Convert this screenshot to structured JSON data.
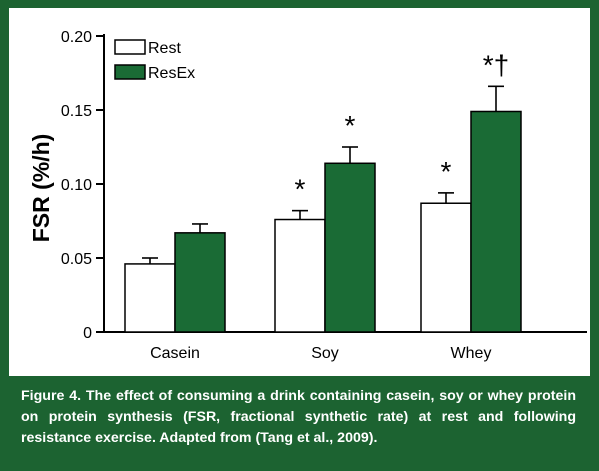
{
  "colors": {
    "frame": "#1c6331",
    "rest": "#ffffff",
    "resex": "#1a6b35",
    "axis": "#000000",
    "caption_text": "#ffffff"
  },
  "chart_data": {
    "type": "bar",
    "title": "",
    "xlabel": "",
    "ylabel": "FSR (%/h)",
    "ylim": [
      0,
      0.2
    ],
    "yticks": [
      0,
      0.05,
      0.1,
      0.15,
      0.2
    ],
    "ytick_labels": [
      "0",
      "0.05",
      "0.10",
      "0.15",
      "0.20"
    ],
    "grid": false,
    "legend_position": "top-left",
    "categories": [
      "Casein",
      "Soy",
      "Whey"
    ],
    "series": [
      {
        "name": "Rest",
        "values": [
          0.046,
          0.076,
          0.087
        ],
        "errors": [
          0.004,
          0.006,
          0.007
        ],
        "markers": [
          "",
          "*",
          "*"
        ]
      },
      {
        "name": "ResEx",
        "values": [
          0.067,
          0.114,
          0.149
        ],
        "errors": [
          0.006,
          0.011,
          0.017
        ],
        "markers": [
          "",
          "*",
          "*†"
        ]
      }
    ]
  },
  "caption": "Figure 4. The effect of consuming a drink containing casein, soy or whey protein on protein synthesis (FSR, fractional synthetic rate) at rest and following resistance exercise. Adapted from (Tang et al., 2009)."
}
